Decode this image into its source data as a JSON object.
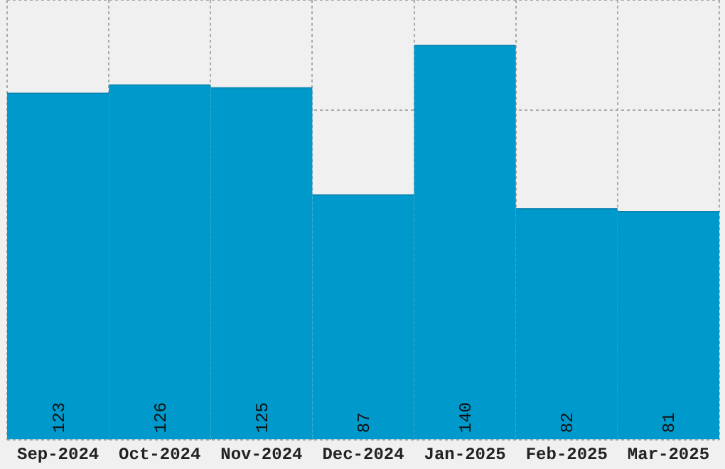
{
  "chart_data": {
    "type": "bar",
    "categories": [
      "Sep-2024",
      "Oct-2024",
      "Nov-2024",
      "Dec-2024",
      "Jan-2025",
      "Feb-2025",
      "Mar-2025"
    ],
    "values": [
      123,
      126,
      125,
      87,
      140,
      82,
      81
    ],
    "color": "#0099cc",
    "ylim": [
      0,
      156
    ],
    "yticks": [
      {
        "value": 0,
        "label": null
      },
      {
        "value": 39,
        "label": null
      },
      {
        "value": 78,
        "label": null
      },
      {
        "value": 117,
        "label": null
      },
      {
        "value": 156,
        "label": null
      }
    ],
    "tick_labels": "x",
    "grid": true,
    "data_labels": true
  }
}
